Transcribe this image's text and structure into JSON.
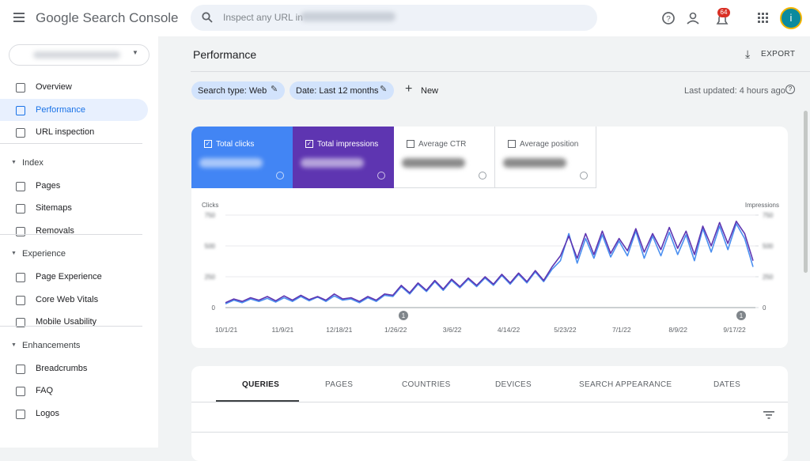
{
  "header": {
    "product": "Google Search Console",
    "search_placeholder": "Inspect any URL in",
    "notification_count": "64",
    "avatar": "i"
  },
  "sidebar": {
    "top": [
      "Overview",
      "Performance",
      "URL inspection"
    ],
    "sections": [
      {
        "title": "Index",
        "items": [
          "Pages",
          "Sitemaps",
          "Removals"
        ]
      },
      {
        "title": "Experience",
        "items": [
          "Page Experience",
          "Core Web Vitals",
          "Mobile Usability"
        ]
      },
      {
        "title": "Enhancements",
        "items": [
          "Breadcrumbs",
          "FAQ",
          "Logos"
        ]
      }
    ]
  },
  "main": {
    "title": "Performance",
    "export": "EXPORT",
    "filters": [
      "Search type: Web",
      "Date: Last 12 months"
    ],
    "new": "New",
    "last_updated": "Last updated: 4 hours ago",
    "metrics": [
      "Total clicks",
      "Total impressions",
      "Average CTR",
      "Average position"
    ],
    "tabs": [
      "QUERIES",
      "PAGES",
      "COUNTRIES",
      "DEVICES",
      "SEARCH APPEARANCE",
      "DATES"
    ]
  },
  "chart_data": {
    "type": "line",
    "y_label": "Clicks",
    "y2_label": "Impressions",
    "xticks": [
      "10/1/21",
      "11/9/21",
      "12/18/21",
      "1/26/22",
      "3/6/22",
      "4/14/22",
      "5/23/22",
      "7/1/22",
      "8/9/22",
      "9/17/22"
    ],
    "ylim": [
      0,
      750
    ],
    "yticks": [
      0,
      250,
      500,
      750
    ],
    "y2lim": [
      0,
      750
    ],
    "y2ticks": [
      0,
      250,
      500,
      750
    ],
    "grid": true,
    "annotations": [
      "1",
      "1"
    ],
    "series": [
      {
        "name": "Total clicks",
        "color": "#4a8ff0",
        "values": [
          30,
          60,
          40,
          70,
          50,
          75,
          45,
          80,
          50,
          90,
          55,
          85,
          50,
          95,
          60,
          70,
          40,
          80,
          50,
          100,
          90,
          170,
          110,
          190,
          130,
          210,
          140,
          220,
          160,
          230,
          170,
          240,
          180,
          260,
          190,
          270,
          200,
          290,
          210,
          310,
          380,
          600,
          360,
          560,
          400,
          590,
          410,
          540,
          420,
          620,
          400,
          580,
          420,
          610,
          430,
          590,
          380,
          640,
          450,
          660,
          470,
          680,
          560,
          330
        ]
      },
      {
        "name": "Total impressions",
        "color": "#5e35b1",
        "axis": "y2",
        "values": [
          40,
          70,
          50,
          80,
          60,
          90,
          55,
          95,
          60,
          100,
          65,
          90,
          60,
          110,
          70,
          80,
          50,
          90,
          60,
          110,
          100,
          180,
          120,
          200,
          140,
          220,
          150,
          230,
          170,
          240,
          180,
          250,
          190,
          270,
          200,
          280,
          210,
          300,
          220,
          330,
          420,
          580,
          400,
          600,
          430,
          620,
          440,
          560,
          460,
          640,
          450,
          600,
          470,
          650,
          480,
          620,
          430,
          660,
          500,
          690,
          520,
          700,
          600,
          380
        ]
      }
    ]
  }
}
